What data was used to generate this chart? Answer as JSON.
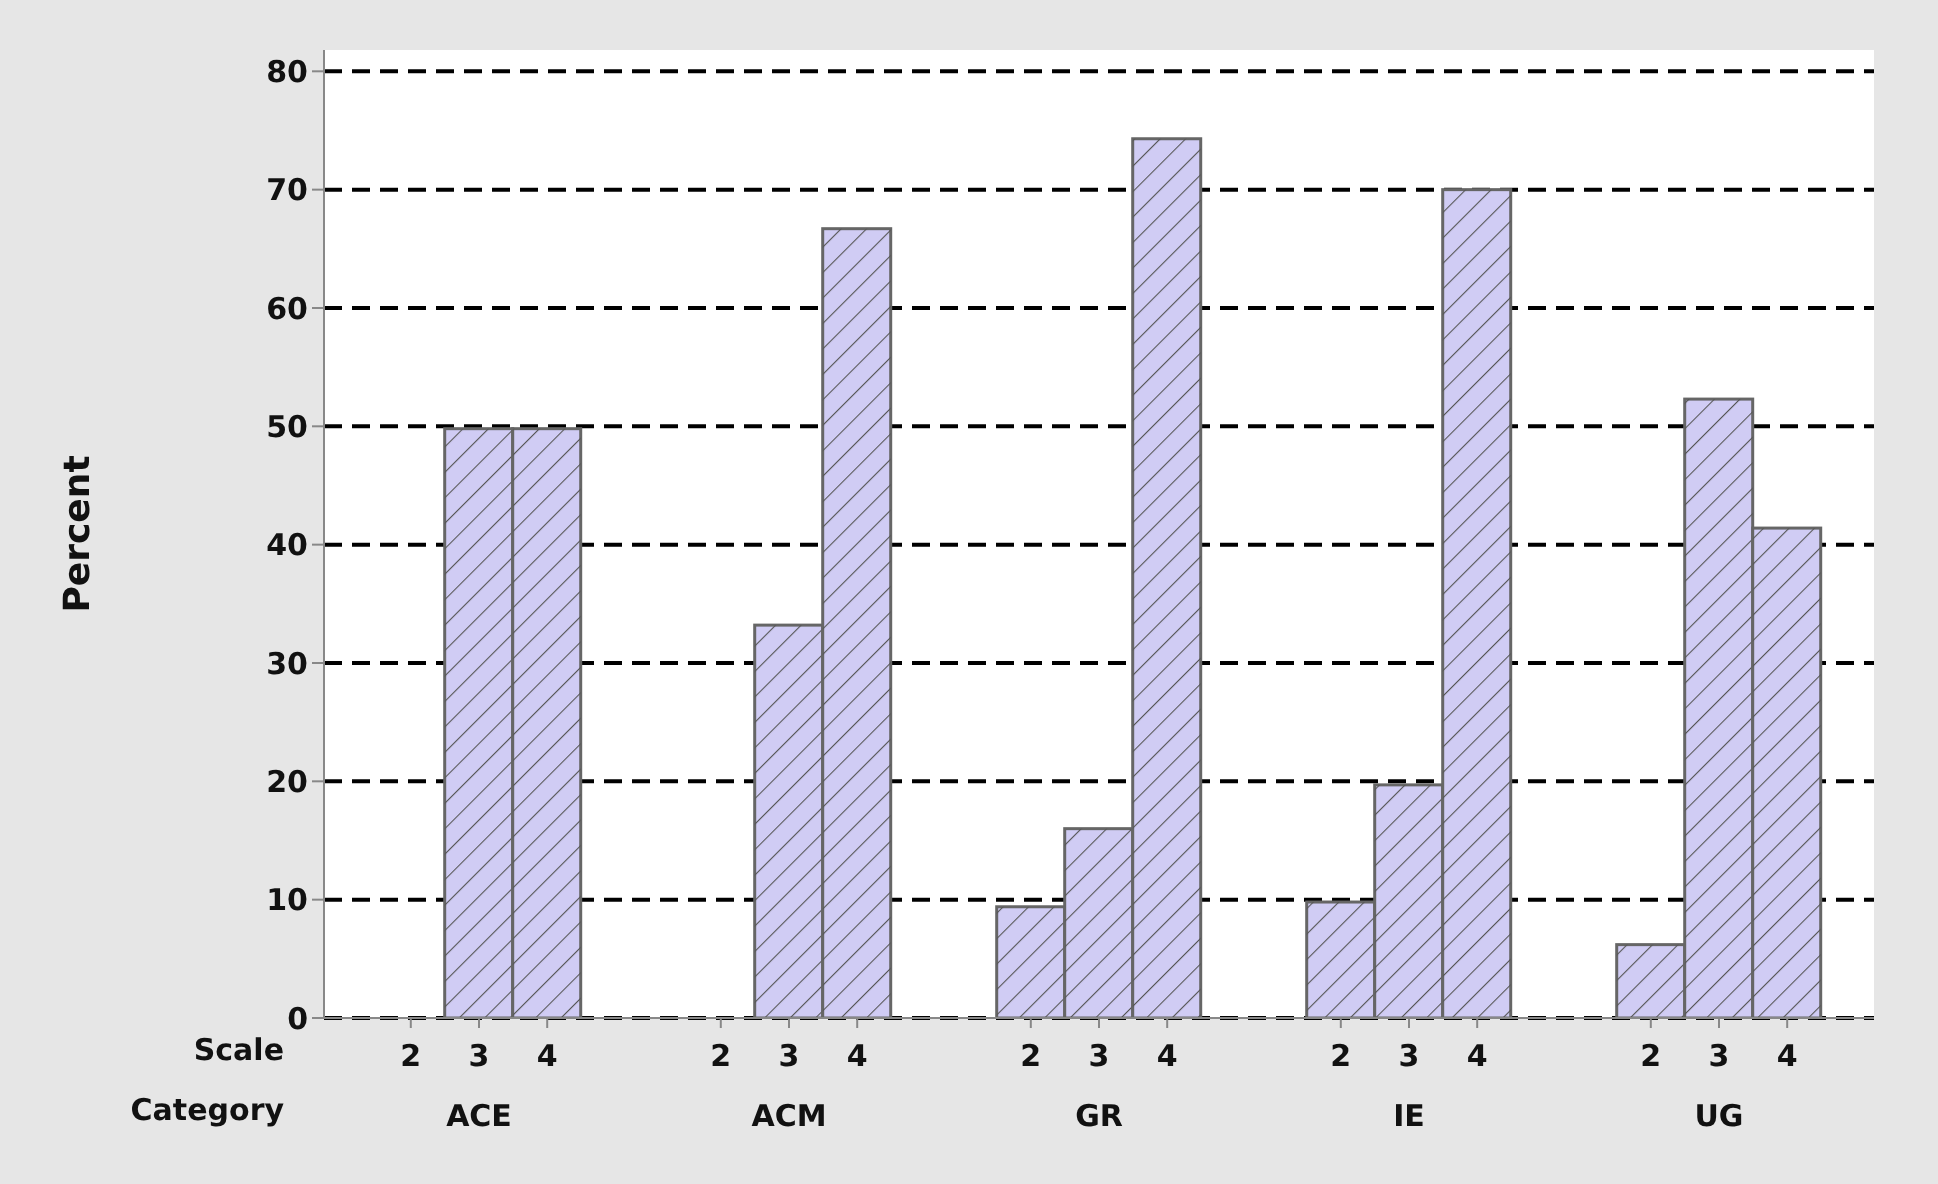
{
  "chart_data": {
    "type": "bar",
    "ylabel": "Percent",
    "xlabel": "Category",
    "annotations": [
      "Scale"
    ],
    "categories": [
      "ACE",
      "ACM",
      "GR",
      "IE",
      "UG"
    ],
    "series": [
      {
        "name": "2",
        "color": "#d0ccf4",
        "values": [
          0,
          0,
          9.4,
          9.8,
          6.2
        ]
      },
      {
        "name": "3",
        "color": "#d0ccf4",
        "values": [
          49.8,
          33.2,
          16.0,
          19.7,
          52.3
        ]
      },
      {
        "name": "4",
        "color": "#d0ccf4",
        "values": [
          49.8,
          66.7,
          74.3,
          70.0,
          41.4
        ]
      }
    ],
    "ylim": [
      0,
      81.8
    ],
    "yticks": [
      0,
      10,
      20,
      30,
      40,
      50,
      60,
      70,
      80
    ],
    "grid": "y"
  }
}
